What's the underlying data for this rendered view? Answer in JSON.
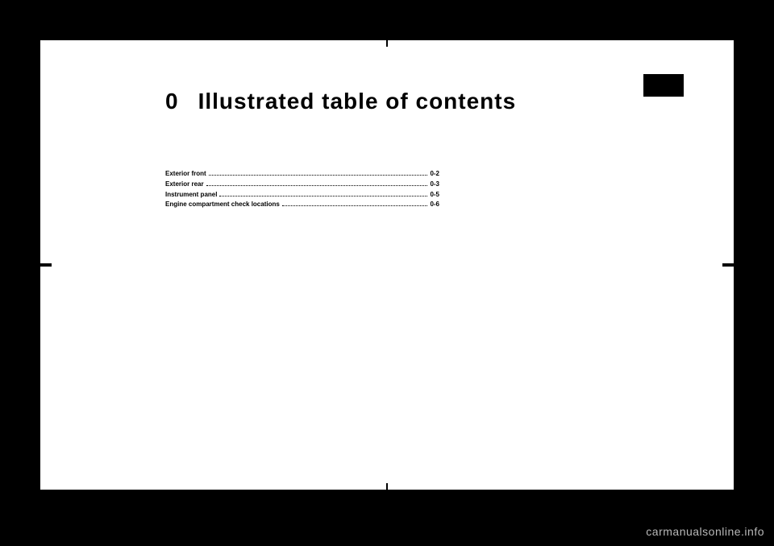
{
  "chapter": {
    "number": "0",
    "title": "Illustrated table of contents"
  },
  "toc": {
    "items": [
      {
        "label": "Exterior front",
        "page": "0-2"
      },
      {
        "label": "Exterior rear",
        "page": "0-3"
      },
      {
        "label": "Instrument panel",
        "page": "0-5"
      },
      {
        "label": "Engine compartment check locations",
        "page": "0-6"
      }
    ]
  },
  "watermark": "carmanualsonline.info",
  "style": {
    "page_bg": "#ffffff",
    "body_bg": "#000000",
    "text_color": "#000000",
    "heading_fontsize": 28,
    "toc_fontsize": 8,
    "watermark_color": "#b8b8b8"
  }
}
